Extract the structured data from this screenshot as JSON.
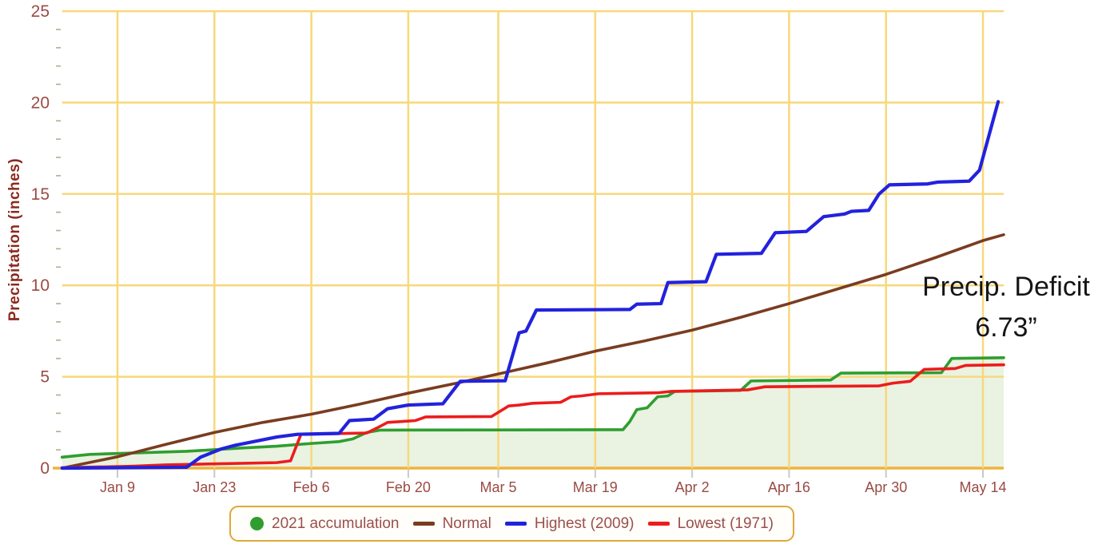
{
  "annotation": {
    "line1": "Precip. Deficit",
    "line2": "6.73”"
  },
  "colors": {
    "grid": "#f7d87b",
    "axis_line": "#eeb33f",
    "tick_label": "#9a4b44",
    "minor_tick": "#b9a98f",
    "x_tick_mark": "#c9c9c9",
    "annotation_text": "#151515",
    "legend_border": "#dcaa38",
    "legend_text": "#9b4f4a",
    "area_fill": "#eaf2e2"
  },
  "chart_data": {
    "type": "line",
    "title": "",
    "xlabel": "",
    "ylabel": "Precipitation (inches)",
    "ylim": [
      0,
      25
    ],
    "y_ticks": [
      0,
      5,
      10,
      15,
      20,
      25
    ],
    "y_minor_tick_step": 1,
    "grid": true,
    "legend_position": "bottom",
    "x_domain_days": [
      0,
      136
    ],
    "x_ticks": [
      {
        "day": 8,
        "label": "Jan 9"
      },
      {
        "day": 22,
        "label": "Jan 23"
      },
      {
        "day": 36,
        "label": "Feb 6"
      },
      {
        "day": 50,
        "label": "Feb 20"
      },
      {
        "day": 63,
        "label": "Mar 5"
      },
      {
        "day": 77,
        "label": "Mar 19"
      },
      {
        "day": 91,
        "label": "Apr 2"
      },
      {
        "day": 105,
        "label": "Apr 16"
      },
      {
        "day": 119,
        "label": "Apr 30"
      },
      {
        "day": 133,
        "label": "May 14"
      }
    ],
    "annotation": {
      "text": "Precip. Deficit 6.73”",
      "meaning": "Normal minus 2021 accumulation at end of period"
    },
    "series": [
      {
        "name": "2021 accumulation",
        "color": "#2f9e2f",
        "marker": "circle",
        "area": true,
        "points": [
          [
            0,
            0.6
          ],
          [
            4,
            0.75
          ],
          [
            8,
            0.8
          ],
          [
            18,
            0.92
          ],
          [
            26,
            1.1
          ],
          [
            31,
            1.2
          ],
          [
            36,
            1.35
          ],
          [
            40,
            1.45
          ],
          [
            42,
            1.6
          ],
          [
            44,
            1.95
          ],
          [
            46,
            2.08
          ],
          [
            81,
            2.1
          ],
          [
            82,
            2.55
          ],
          [
            83,
            3.2
          ],
          [
            84.5,
            3.3
          ],
          [
            86,
            3.9
          ],
          [
            87.5,
            3.95
          ],
          [
            88.5,
            4.2
          ],
          [
            98,
            4.25
          ],
          [
            99.5,
            4.77
          ],
          [
            111,
            4.82
          ],
          [
            112.5,
            5.2
          ],
          [
            127,
            5.22
          ],
          [
            128.5,
            6.0
          ],
          [
            136,
            6.04
          ]
        ]
      },
      {
        "name": "Normal",
        "color": "#7a3c20",
        "marker": "line",
        "area": false,
        "points": [
          [
            0,
            0
          ],
          [
            8,
            0.62
          ],
          [
            15,
            1.3
          ],
          [
            22,
            1.95
          ],
          [
            29,
            2.5
          ],
          [
            36,
            2.95
          ],
          [
            43,
            3.5
          ],
          [
            50,
            4.1
          ],
          [
            57,
            4.65
          ],
          [
            63,
            5.15
          ],
          [
            70,
            5.75
          ],
          [
            77,
            6.4
          ],
          [
            84,
            6.95
          ],
          [
            91,
            7.55
          ],
          [
            98,
            8.25
          ],
          [
            105,
            9.0
          ],
          [
            112,
            9.8
          ],
          [
            119,
            10.6
          ],
          [
            126,
            11.5
          ],
          [
            133,
            12.45
          ],
          [
            136,
            12.77
          ]
        ]
      },
      {
        "name": "Highest (2009)",
        "color": "#2222dd",
        "marker": "line",
        "area": false,
        "points": [
          [
            0,
            0
          ],
          [
            18,
            0.05
          ],
          [
            20,
            0.6
          ],
          [
            23,
            1.05
          ],
          [
            25,
            1.25
          ],
          [
            31,
            1.7
          ],
          [
            34,
            1.85
          ],
          [
            40,
            1.9
          ],
          [
            41.5,
            2.6
          ],
          [
            45,
            2.68
          ],
          [
            47,
            3.25
          ],
          [
            50,
            3.45
          ],
          [
            55,
            3.52
          ],
          [
            57.5,
            4.75
          ],
          [
            64,
            4.78
          ],
          [
            66,
            7.4
          ],
          [
            67,
            7.5
          ],
          [
            68.5,
            8.65
          ],
          [
            82,
            8.68
          ],
          [
            83,
            8.97
          ],
          [
            86.5,
            9.0
          ],
          [
            87.5,
            10.15
          ],
          [
            93,
            10.2
          ],
          [
            94.5,
            11.7
          ],
          [
            101,
            11.75
          ],
          [
            103,
            12.88
          ],
          [
            107.5,
            12.95
          ],
          [
            110,
            13.76
          ],
          [
            113,
            13.9
          ],
          [
            114,
            14.05
          ],
          [
            116.5,
            14.1
          ],
          [
            118,
            15.0
          ],
          [
            119.5,
            15.5
          ],
          [
            125,
            15.55
          ],
          [
            126.5,
            15.65
          ],
          [
            131,
            15.7
          ],
          [
            132.5,
            16.3
          ],
          [
            135.2,
            20.05
          ]
        ]
      },
      {
        "name": "Lowest (1971)",
        "color": "#ec1c1c",
        "marker": "line",
        "area": false,
        "points": [
          [
            0,
            0.02
          ],
          [
            10,
            0.1
          ],
          [
            15,
            0.18
          ],
          [
            31,
            0.3
          ],
          [
            33,
            0.4
          ],
          [
            34.5,
            1.85
          ],
          [
            44,
            1.92
          ],
          [
            45.5,
            2.2
          ],
          [
            47,
            2.5
          ],
          [
            49,
            2.55
          ],
          [
            51,
            2.6
          ],
          [
            52.5,
            2.8
          ],
          [
            62,
            2.82
          ],
          [
            64.5,
            3.4
          ],
          [
            66,
            3.45
          ],
          [
            67,
            3.5
          ],
          [
            68,
            3.55
          ],
          [
            72,
            3.6
          ],
          [
            73.5,
            3.9
          ],
          [
            75,
            3.95
          ],
          [
            77.5,
            4.07
          ],
          [
            86,
            4.12
          ],
          [
            88,
            4.2
          ],
          [
            99,
            4.28
          ],
          [
            101.5,
            4.45
          ],
          [
            118,
            4.5
          ],
          [
            120,
            4.65
          ],
          [
            122.5,
            4.75
          ],
          [
            124.5,
            5.4
          ],
          [
            129,
            5.45
          ],
          [
            130.5,
            5.62
          ],
          [
            136,
            5.65
          ]
        ]
      }
    ]
  }
}
